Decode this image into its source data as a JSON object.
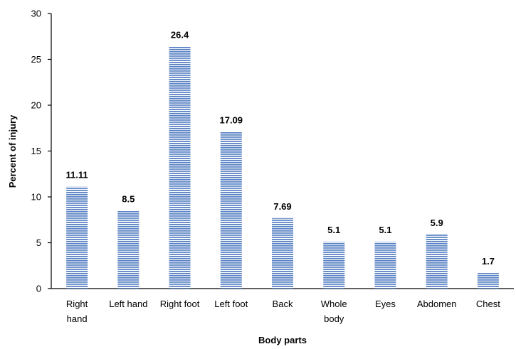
{
  "chart_data": {
    "type": "bar",
    "categories": [
      "Right hand",
      "Left hand",
      "Right foot",
      "Left foot",
      "Back",
      "Whole body",
      "Eyes",
      "Abdomen",
      "Chest"
    ],
    "values": [
      11.11,
      8.5,
      26.4,
      17.09,
      7.69,
      5.1,
      5.1,
      5.9,
      1.7
    ],
    "data_labels": [
      "11.11",
      "8.5",
      "26.4",
      "17.09",
      "7.69",
      "5.1",
      "5.1",
      "5.9",
      "1.7"
    ],
    "xlabel": "Body parts",
    "ylabel": "Percent of injury",
    "ylim": [
      0,
      30
    ],
    "yticks": [
      0,
      5,
      10,
      15,
      20,
      25,
      30
    ],
    "grid": false,
    "bar_color": "#5b83c4",
    "bar_fill_style": "horizontal stripes"
  }
}
